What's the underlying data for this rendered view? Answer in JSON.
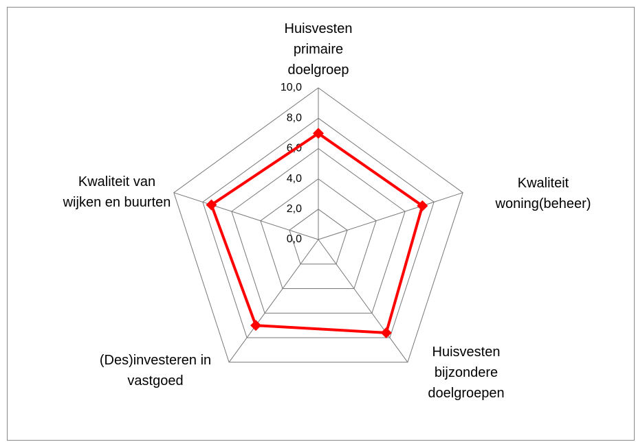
{
  "chart_data": {
    "type": "radar",
    "categories": [
      "Huisvesten primaire doelgroep",
      "Kwaliteit woning(beheer)",
      "Huisvesten bijzondere doelgroepen",
      "(Des)investeren in vastgoed",
      "Kwaliteit van wijken en buurten"
    ],
    "series": [
      {
        "color": "#ff0000",
        "values": [
          7.0,
          7.2,
          7.6,
          7.0,
          7.4
        ]
      }
    ],
    "ylim": [
      0,
      10
    ],
    "yticks": [
      {
        "value": 0,
        "label": "0,0"
      },
      {
        "value": 2,
        "label": "2,0"
      },
      {
        "value": 4,
        "label": "4,0"
      },
      {
        "value": 6,
        "label": "6,0"
      },
      {
        "value": 8,
        "label": "8,0"
      },
      {
        "value": 10,
        "label": "10,0"
      }
    ],
    "grid": true
  }
}
